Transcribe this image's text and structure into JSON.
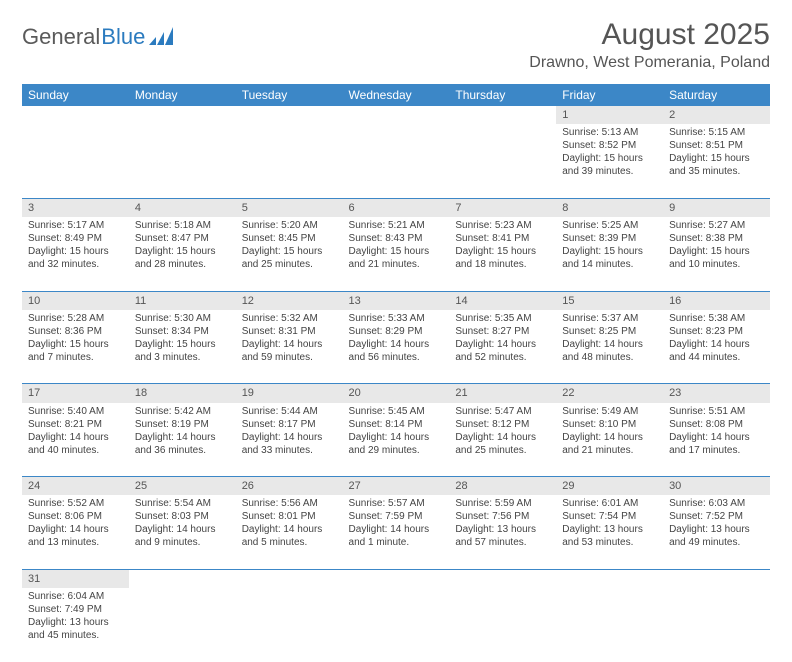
{
  "logo": {
    "word1": "General",
    "word2": "Blue"
  },
  "title": "August 2025",
  "location": "Drawno, West Pomerania, Poland",
  "colors": {
    "header_bg": "#3c87c7",
    "header_text": "#ffffff",
    "daynum_bg": "#e8e8e8",
    "cell_border": "#3c87c7",
    "logo_gray": "#5a5a5a",
    "logo_blue": "#2b7bbf"
  },
  "weekdays": [
    "Sunday",
    "Monday",
    "Tuesday",
    "Wednesday",
    "Thursday",
    "Friday",
    "Saturday"
  ],
  "weeks": [
    {
      "nums": [
        "",
        "",
        "",
        "",
        "",
        "1",
        "2"
      ],
      "cells": [
        null,
        null,
        null,
        null,
        null,
        {
          "sunrise": "Sunrise: 5:13 AM",
          "sunset": "Sunset: 8:52 PM",
          "daylight": "Daylight: 15 hours and 39 minutes."
        },
        {
          "sunrise": "Sunrise: 5:15 AM",
          "sunset": "Sunset: 8:51 PM",
          "daylight": "Daylight: 15 hours and 35 minutes."
        }
      ]
    },
    {
      "nums": [
        "3",
        "4",
        "5",
        "6",
        "7",
        "8",
        "9"
      ],
      "cells": [
        {
          "sunrise": "Sunrise: 5:17 AM",
          "sunset": "Sunset: 8:49 PM",
          "daylight": "Daylight: 15 hours and 32 minutes."
        },
        {
          "sunrise": "Sunrise: 5:18 AM",
          "sunset": "Sunset: 8:47 PM",
          "daylight": "Daylight: 15 hours and 28 minutes."
        },
        {
          "sunrise": "Sunrise: 5:20 AM",
          "sunset": "Sunset: 8:45 PM",
          "daylight": "Daylight: 15 hours and 25 minutes."
        },
        {
          "sunrise": "Sunrise: 5:21 AM",
          "sunset": "Sunset: 8:43 PM",
          "daylight": "Daylight: 15 hours and 21 minutes."
        },
        {
          "sunrise": "Sunrise: 5:23 AM",
          "sunset": "Sunset: 8:41 PM",
          "daylight": "Daylight: 15 hours and 18 minutes."
        },
        {
          "sunrise": "Sunrise: 5:25 AM",
          "sunset": "Sunset: 8:39 PM",
          "daylight": "Daylight: 15 hours and 14 minutes."
        },
        {
          "sunrise": "Sunrise: 5:27 AM",
          "sunset": "Sunset: 8:38 PM",
          "daylight": "Daylight: 15 hours and 10 minutes."
        }
      ]
    },
    {
      "nums": [
        "10",
        "11",
        "12",
        "13",
        "14",
        "15",
        "16"
      ],
      "cells": [
        {
          "sunrise": "Sunrise: 5:28 AM",
          "sunset": "Sunset: 8:36 PM",
          "daylight": "Daylight: 15 hours and 7 minutes."
        },
        {
          "sunrise": "Sunrise: 5:30 AM",
          "sunset": "Sunset: 8:34 PM",
          "daylight": "Daylight: 15 hours and 3 minutes."
        },
        {
          "sunrise": "Sunrise: 5:32 AM",
          "sunset": "Sunset: 8:31 PM",
          "daylight": "Daylight: 14 hours and 59 minutes."
        },
        {
          "sunrise": "Sunrise: 5:33 AM",
          "sunset": "Sunset: 8:29 PM",
          "daylight": "Daylight: 14 hours and 56 minutes."
        },
        {
          "sunrise": "Sunrise: 5:35 AM",
          "sunset": "Sunset: 8:27 PM",
          "daylight": "Daylight: 14 hours and 52 minutes."
        },
        {
          "sunrise": "Sunrise: 5:37 AM",
          "sunset": "Sunset: 8:25 PM",
          "daylight": "Daylight: 14 hours and 48 minutes."
        },
        {
          "sunrise": "Sunrise: 5:38 AM",
          "sunset": "Sunset: 8:23 PM",
          "daylight": "Daylight: 14 hours and 44 minutes."
        }
      ]
    },
    {
      "nums": [
        "17",
        "18",
        "19",
        "20",
        "21",
        "22",
        "23"
      ],
      "cells": [
        {
          "sunrise": "Sunrise: 5:40 AM",
          "sunset": "Sunset: 8:21 PM",
          "daylight": "Daylight: 14 hours and 40 minutes."
        },
        {
          "sunrise": "Sunrise: 5:42 AM",
          "sunset": "Sunset: 8:19 PM",
          "daylight": "Daylight: 14 hours and 36 minutes."
        },
        {
          "sunrise": "Sunrise: 5:44 AM",
          "sunset": "Sunset: 8:17 PM",
          "daylight": "Daylight: 14 hours and 33 minutes."
        },
        {
          "sunrise": "Sunrise: 5:45 AM",
          "sunset": "Sunset: 8:14 PM",
          "daylight": "Daylight: 14 hours and 29 minutes."
        },
        {
          "sunrise": "Sunrise: 5:47 AM",
          "sunset": "Sunset: 8:12 PM",
          "daylight": "Daylight: 14 hours and 25 minutes."
        },
        {
          "sunrise": "Sunrise: 5:49 AM",
          "sunset": "Sunset: 8:10 PM",
          "daylight": "Daylight: 14 hours and 21 minutes."
        },
        {
          "sunrise": "Sunrise: 5:51 AM",
          "sunset": "Sunset: 8:08 PM",
          "daylight": "Daylight: 14 hours and 17 minutes."
        }
      ]
    },
    {
      "nums": [
        "24",
        "25",
        "26",
        "27",
        "28",
        "29",
        "30"
      ],
      "cells": [
        {
          "sunrise": "Sunrise: 5:52 AM",
          "sunset": "Sunset: 8:06 PM",
          "daylight": "Daylight: 14 hours and 13 minutes."
        },
        {
          "sunrise": "Sunrise: 5:54 AM",
          "sunset": "Sunset: 8:03 PM",
          "daylight": "Daylight: 14 hours and 9 minutes."
        },
        {
          "sunrise": "Sunrise: 5:56 AM",
          "sunset": "Sunset: 8:01 PM",
          "daylight": "Daylight: 14 hours and 5 minutes."
        },
        {
          "sunrise": "Sunrise: 5:57 AM",
          "sunset": "Sunset: 7:59 PM",
          "daylight": "Daylight: 14 hours and 1 minute."
        },
        {
          "sunrise": "Sunrise: 5:59 AM",
          "sunset": "Sunset: 7:56 PM",
          "daylight": "Daylight: 13 hours and 57 minutes."
        },
        {
          "sunrise": "Sunrise: 6:01 AM",
          "sunset": "Sunset: 7:54 PM",
          "daylight": "Daylight: 13 hours and 53 minutes."
        },
        {
          "sunrise": "Sunrise: 6:03 AM",
          "sunset": "Sunset: 7:52 PM",
          "daylight": "Daylight: 13 hours and 49 minutes."
        }
      ]
    },
    {
      "nums": [
        "31",
        "",
        "",
        "",
        "",
        "",
        ""
      ],
      "cells": [
        {
          "sunrise": "Sunrise: 6:04 AM",
          "sunset": "Sunset: 7:49 PM",
          "daylight": "Daylight: 13 hours and 45 minutes."
        },
        null,
        null,
        null,
        null,
        null,
        null
      ]
    }
  ]
}
